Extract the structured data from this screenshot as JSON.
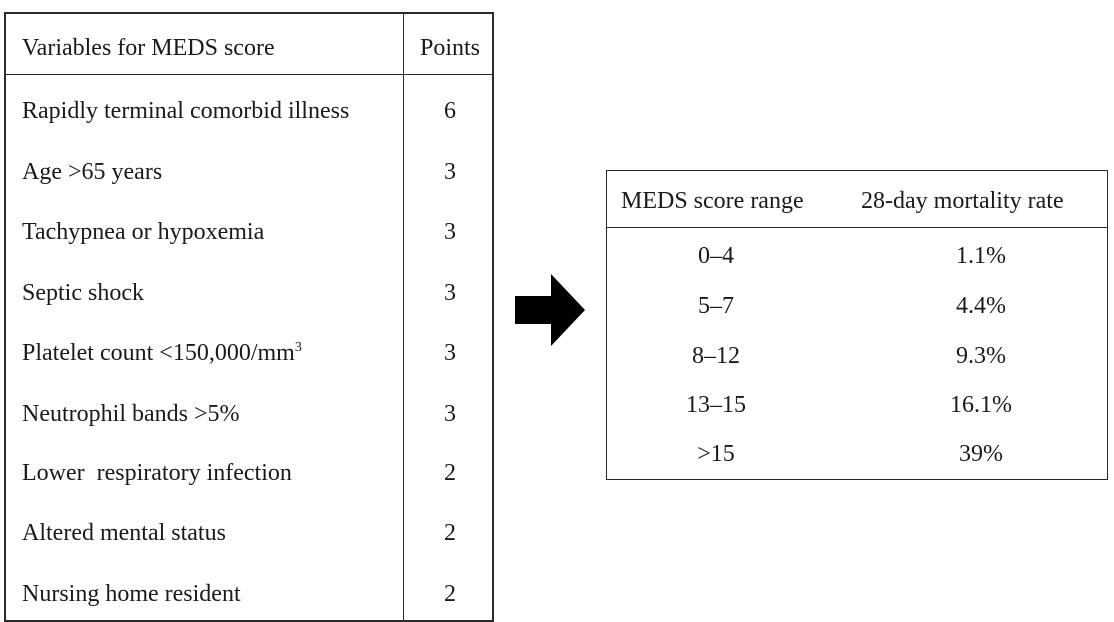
{
  "left_table": {
    "header": {
      "variable": "Variables for MEDS score",
      "points": "Points"
    },
    "rows": [
      {
        "variable": "Rapidly terminal comorbid illness",
        "points": "6"
      },
      {
        "variable": "Age >65 years",
        "points": "3"
      },
      {
        "variable": "Tachypnea or hypoxemia",
        "points": "3"
      },
      {
        "variable": "Septic shock",
        "points": "3"
      },
      {
        "variable": "Platelet count <150,000/mm",
        "superscript": "3",
        "points": "3"
      },
      {
        "variable": "Neutrophil bands >5%",
        "points": "3"
      },
      {
        "variable": "Lower  respiratory infection",
        "points": "2"
      },
      {
        "variable": "Altered mental status",
        "points": "2"
      },
      {
        "variable": "Nursing home resident",
        "points": "2"
      }
    ]
  },
  "arrow": {
    "icon": "right-arrow-icon",
    "color": "#000000"
  },
  "right_table": {
    "header": {
      "range": "MEDS score range",
      "rate": "28-day mortality rate"
    },
    "rows": [
      {
        "range": "0–4",
        "rate": "1.1%"
      },
      {
        "range": "5–7",
        "rate": "4.4%"
      },
      {
        "range": "8–12",
        "rate": "9.3%"
      },
      {
        "range": "13–15",
        "rate": "16.1%"
      },
      {
        "range": ">15",
        "rate": "39%"
      }
    ]
  }
}
